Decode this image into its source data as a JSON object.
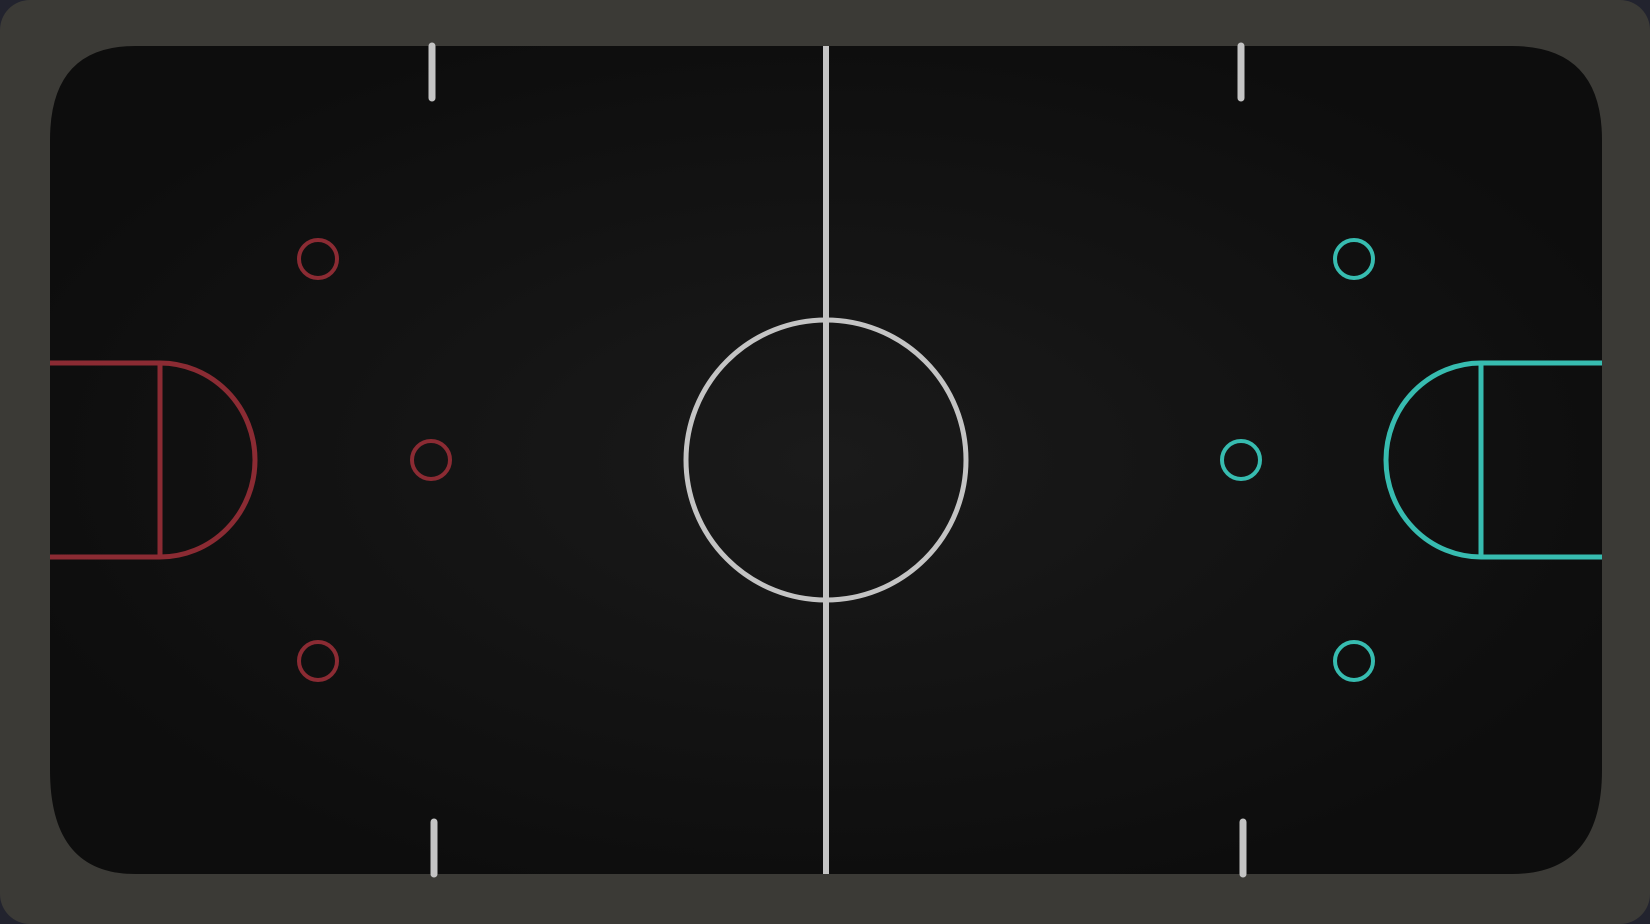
{
  "game": {
    "name": "air-hockey-table",
    "colors": {
      "page_background": "#22232e",
      "frame": "#3b3a36",
      "surface": "#0d0d0d",
      "surface_glow": "#1a1a1a",
      "center_markings": "#c4c4c4",
      "left_team": "#8b2b33",
      "right_team": "#37bcb0"
    },
    "rink": {
      "center_line": true,
      "center_circle": true,
      "quarter_ticks": 4
    },
    "left_side": {
      "team_color": "left_team",
      "goal_crease": "semicircle",
      "faceoff_circles": 3
    },
    "right_side": {
      "team_color": "right_team",
      "goal_crease": "semicircle",
      "faceoff_circles": 3
    }
  }
}
